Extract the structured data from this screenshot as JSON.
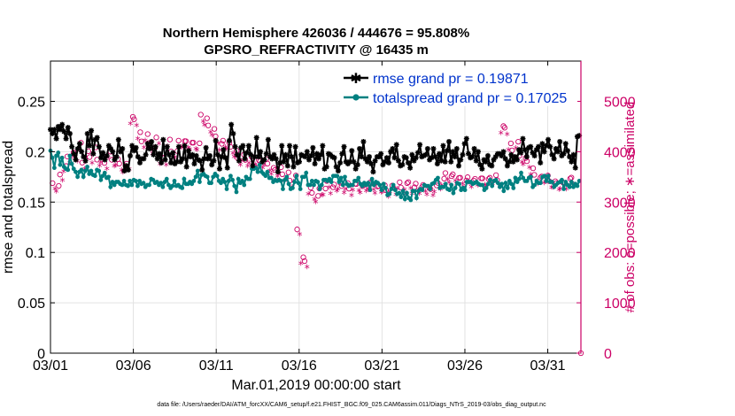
{
  "chart_data": {
    "type": "line",
    "title": "Northern Hemisphere 426036 / 444676 = 95.808%",
    "subtitle": "GPSRO_REFRACTIVITY @ 16435 m",
    "xlabel": "Mar.01,2019 00:00:00 start",
    "ylabel": "rmse and totalspread",
    "y2label": "# of obs: o=possible; ∗=assimilated",
    "footer": "data file: /Users/raeder/DAI/ATM_forcXX/CAM6_setup/f.e21.FHIST_BGC.f09_025.CAM6assim.011/Diags_NTrS_2019-03/obs_diag_output.nc",
    "xlim": [
      0,
      32
    ],
    "ylim": [
      0,
      0.29
    ],
    "y2lim": [
      0,
      5800
    ],
    "xtick_positions": [
      0,
      5,
      10,
      15,
      20,
      25,
      30
    ],
    "xtick_labels": [
      "03/01",
      "03/06",
      "03/11",
      "03/16",
      "03/21",
      "03/26",
      "03/31"
    ],
    "yticks": [
      0,
      0.05,
      0.1,
      0.15,
      0.2,
      0.25
    ],
    "ytick_labels": [
      "0",
      "0.05",
      "0.1",
      "0.15",
      "0.2",
      "0.25"
    ],
    "y2ticks": [
      0,
      1000,
      2000,
      3000,
      4000,
      5000
    ],
    "y2tick_labels": [
      "0",
      "1000",
      "2000",
      "3000",
      "4000",
      "5000"
    ],
    "grid": true,
    "legend_position": "top-right",
    "series": [
      {
        "name": "rmse grand pr = 0.19871",
        "axis": "left",
        "color": "#000000",
        "values": [
          0.222,
          0.218,
          0.222,
          0.213,
          0.225,
          0.222,
          0.227,
          0.22,
          0.213,
          0.224,
          0.218,
          0.205,
          0.198,
          0.192,
          0.203,
          0.208,
          0.2,
          0.195,
          0.191,
          0.218,
          0.206,
          0.221,
          0.198,
          0.212,
          0.214,
          0.205,
          0.194,
          0.199,
          0.192,
          0.196,
          0.206,
          0.203,
          0.2,
          0.192,
          0.195,
          0.212,
          0.2,
          0.203,
          0.181,
          0.186,
          0.182,
          0.196,
          0.206,
          0.201,
          0.204,
          0.195,
          0.189,
          0.193,
          0.193,
          0.197,
          0.208,
          0.203,
          0.21,
          0.197,
          0.205,
          0.193,
          0.198,
          0.189,
          0.212,
          0.192,
          0.205,
          0.197,
          0.189,
          0.199,
          0.188,
          0.19,
          0.205,
          0.19,
          0.193,
          0.206,
          0.185,
          0.201,
          0.195,
          0.197,
          0.188,
          0.196,
          0.192,
          0.191,
          0.182,
          0.193,
          0.204,
          0.193,
          0.196,
          0.187,
          0.191,
          0.211,
          0.197,
          0.183,
          0.195,
          0.202,
          0.194,
          0.184,
          0.211,
          0.227,
          0.218,
          0.205,
          0.197,
          0.191,
          0.204,
          0.206,
          0.193,
          0.199,
          0.206,
          0.197,
          0.186,
          0.195,
          0.214,
          0.195,
          0.2,
          0.19,
          0.192,
          0.198,
          0.212,
          0.195,
          0.193,
          0.197,
          0.193,
          0.18,
          0.189,
          0.206,
          0.19,
          0.197,
          0.186,
          0.206,
          0.195,
          0.185,
          0.205,
          0.189,
          0.19,
          0.197,
          0.196,
          0.195,
          0.2,
          0.192,
          0.196,
          0.204,
          0.188,
          0.198,
          0.193,
          0.197,
          0.206,
          0.183,
          0.185,
          0.198,
          0.197,
          0.195,
          0.194,
          0.185,
          0.181,
          0.189,
          0.198,
          0.205,
          0.19,
          0.188,
          0.19,
          0.201,
          0.19,
          0.183,
          0.187,
          0.203,
          0.195,
          0.21,
          0.193,
          0.19,
          0.195,
          0.188,
          0.18,
          0.191,
          0.195,
          0.195,
          0.198,
          0.187,
          0.19,
          0.194,
          0.189,
          0.2,
          0.203,
          0.194,
          0.207,
          0.191,
          0.186,
          0.187,
          0.195,
          0.194,
          0.189,
          0.184,
          0.197,
          0.191,
          0.194,
          0.199,
          0.207,
          0.195,
          0.196,
          0.197,
          0.203,
          0.192,
          0.194,
          0.203,
          0.195,
          0.188,
          0.198,
          0.191,
          0.206,
          0.19,
          0.201,
          0.21,
          0.19,
          0.2,
          0.195,
          0.203,
          0.186,
          0.192,
          0.197,
          0.208,
          0.213,
          0.198,
          0.194,
          0.195,
          0.203,
          0.191,
          0.2,
          0.187,
          0.183,
          0.192,
          0.19,
          0.196,
          0.187,
          0.186,
          0.192,
          0.195,
          0.198,
          0.198,
          0.196,
          0.2,
          0.193,
          0.186,
          0.19,
          0.197,
          0.19,
          0.195,
          0.192,
          0.202,
          0.199,
          0.213,
          0.202,
          0.195,
          0.204,
          0.205,
          0.199,
          0.196,
          0.202,
          0.205,
          0.189,
          0.208,
          0.2,
          0.206,
          0.212,
          0.205,
          0.197,
          0.193,
          0.203,
          0.2,
          0.21,
          0.196,
          0.198,
          0.208,
          0.201,
          0.195,
          0.19,
          0.197,
          0.184,
          0.215,
          0.216
        ]
      },
      {
        "name": "totalspread grand pr = 0.17025",
        "axis": "left",
        "color": "#008080",
        "values": [
          0.201,
          0.194,
          0.184,
          0.196,
          0.199,
          0.187,
          0.194,
          0.185,
          0.183,
          0.182,
          0.196,
          0.188,
          0.183,
          0.18,
          0.175,
          0.18,
          0.182,
          0.175,
          0.181,
          0.185,
          0.178,
          0.181,
          0.177,
          0.176,
          0.182,
          0.181,
          0.172,
          0.176,
          0.179,
          0.174,
          0.175,
          0.165,
          0.17,
          0.167,
          0.17,
          0.17,
          0.168,
          0.167,
          0.171,
          0.167,
          0.166,
          0.171,
          0.167,
          0.172,
          0.171,
          0.166,
          0.171,
          0.168,
          0.169,
          0.165,
          0.167,
          0.167,
          0.173,
          0.172,
          0.169,
          0.17,
          0.167,
          0.169,
          0.165,
          0.17,
          0.173,
          0.167,
          0.164,
          0.166,
          0.171,
          0.166,
          0.167,
          0.165,
          0.164,
          0.173,
          0.168,
          0.168,
          0.17,
          0.168,
          0.171,
          0.175,
          0.181,
          0.17,
          0.177,
          0.178,
          0.176,
          0.175,
          0.169,
          0.169,
          0.175,
          0.178,
          0.176,
          0.171,
          0.169,
          0.173,
          0.17,
          0.163,
          0.171,
          0.176,
          0.172,
          0.166,
          0.16,
          0.173,
          0.169,
          0.171,
          0.167,
          0.175,
          0.173,
          0.173,
          0.183,
          0.183,
          0.184,
          0.18,
          0.187,
          0.18,
          0.178,
          0.176,
          0.18,
          0.174,
          0.174,
          0.17,
          0.172,
          0.171,
          0.172,
          0.171,
          0.163,
          0.172,
          0.175,
          0.168,
          0.163,
          0.164,
          0.17,
          0.176,
          0.169,
          0.163,
          0.175,
          0.175,
          0.179,
          0.167,
          0.167,
          0.171,
          0.167,
          0.171,
          0.17,
          0.163,
          0.167,
          0.172,
          0.172,
          0.171,
          0.173,
          0.17,
          0.176,
          0.176,
          0.176,
          0.17,
          0.174,
          0.167,
          0.175,
          0.168,
          0.166,
          0.167,
          0.167,
          0.171,
          0.171,
          0.174,
          0.168,
          0.166,
          0.169,
          0.167,
          0.169,
          0.162,
          0.173,
          0.167,
          0.17,
          0.169,
          0.167,
          0.162,
          0.168,
          0.164,
          0.157,
          0.158,
          0.163,
          0.167,
          0.162,
          0.158,
          0.159,
          0.155,
          0.161,
          0.153,
          0.159,
          0.154,
          0.152,
          0.161,
          0.161,
          0.154,
          0.161,
          0.163,
          0.162,
          0.167,
          0.166,
          0.166,
          0.163,
          0.168,
          0.169,
          0.172,
          0.174,
          0.164,
          0.165,
          0.165,
          0.168,
          0.163,
          0.162,
          0.167,
          0.159,
          0.164,
          0.169,
          0.168,
          0.162,
          0.164,
          0.162,
          0.17,
          0.17,
          0.17,
          0.168,
          0.169,
          0.17,
          0.168,
          0.167,
          0.167,
          0.162,
          0.164,
          0.168,
          0.172,
          0.166,
          0.171,
          0.172,
          0.169,
          0.165,
          0.168,
          0.161,
          0.169,
          0.164,
          0.171,
          0.168,
          0.164,
          0.174,
          0.17,
          0.173,
          0.179,
          0.174,
          0.171,
          0.171,
          0.174,
          0.175,
          0.165,
          0.167,
          0.171,
          0.169,
          0.169,
          0.175,
          0.176,
          0.171,
          0.176,
          0.17,
          0.17,
          0.165,
          0.167,
          0.169,
          0.17,
          0.172,
          0.163,
          0.17,
          0.167,
          0.165,
          0.17,
          0.165,
          0.168,
          0.166,
          0.171
        ]
      },
      {
        "name": "possible",
        "axis": "right",
        "marker": "o",
        "color": "#cc0066",
        "values": [
          3376,
          3321,
          3547,
          3716,
          3906,
          3986,
          3934,
          4179,
          3783,
          4009,
          3893,
          4085,
          3843,
          3916,
          3777,
          4001,
          3839,
          3853,
          3763,
          3719,
          3764,
          4693,
          4645,
          4388,
          4205,
          4350,
          4172,
          4081,
          4283,
          3883,
          3870,
          4242,
          4004,
          4013,
          4221,
          4211,
          4209,
          4180,
          4180,
          4167,
          4737,
          4664,
          4521,
          4453,
          4305,
          4157,
          4221,
          4181,
          4095,
          4021,
          3869,
          3943,
          3837,
          3904,
          3875,
          3836,
          3811,
          3856,
          3763,
          3680,
          3637,
          3692,
          3553,
          3590,
          3427,
          3528,
          2457,
          1904,
          1828,
          3286,
          3182,
          3122,
          3269,
          3268,
          3419,
          3295,
          3348,
          3383,
          3317,
          3377,
          3266,
          3364,
          3358,
          3316,
          3346,
          3390,
          3371,
          3310,
          3317,
          3334,
          3236,
          3329,
          3279,
          3394,
          3291,
          3376,
          3397,
          3294,
          3366,
          3298,
          3341,
          3282,
          3257,
          3330,
          3380,
          3466,
          3577,
          3514,
          3551,
          3480,
          3485,
          3430,
          3494,
          3427,
          3462,
          3471,
          3471,
          3457,
          3483,
          3535,
          3435,
          4509,
          4476,
          4165,
          4026,
          4199,
          3921,
          3874,
          3812,
          3671,
          3542,
          3488,
          3509,
          3527,
          3416,
          3413,
          3379,
          3392,
          3379,
          3467,
          3486
        ]
      },
      {
        "name": "assimilated",
        "axis": "right",
        "marker": "*",
        "color": "#cc0066",
        "values": [
          3236,
          3183,
          3403,
          3574,
          3748,
          3836,
          3778,
          4025,
          3627,
          3859,
          3745,
          3921,
          3691,
          3760,
          3633,
          3845,
          3685,
          3701,
          3601,
          3561,
          3618,
          4529,
          4487,
          4226,
          4051,
          4192,
          4010,
          3925,
          4129,
          3725,
          3712,
          4078,
          3844,
          3861,
          4061,
          4057,
          4053,
          4014,
          4026,
          4007,
          4571,
          4502,
          4361,
          4297,
          4143,
          3995,
          4063,
          4027,
          3939,
          3863,
          3709,
          3785,
          3681,
          3746,
          3715,
          3674,
          3649,
          3702,
          3597,
          3520,
          3479,
          3532,
          3395,
          3432,
          3267,
          3372,
          2327,
          1748,
          1682,
          3132,
          3022,
          2968,
          3107,
          3110,
          3259,
          3139,
          3186,
          3227,
          3159,
          3223,
          3104,
          3210,
          3198,
          3158,
          3188,
          3234,
          3215,
          3150,
          3161,
          3176,
          3078,
          3171,
          3123,
          3238,
          3133,
          3218,
          3241,
          3138,
          3208,
          3140,
          3183,
          3124,
          3101,
          3172,
          3226,
          3306,
          3419,
          3358,
          3393,
          3324,
          3329,
          3270,
          3338,
          3269,
          3306,
          3315,
          3313,
          3299,
          3327,
          3377,
          3277,
          4343,
          4316,
          4007,
          3870,
          4039,
          3763,
          3718,
          3654,
          3517,
          3388,
          3328,
          3351,
          3371,
          3258,
          3257,
          3219,
          3238,
          3223,
          3307,
          3326
        ]
      }
    ]
  }
}
